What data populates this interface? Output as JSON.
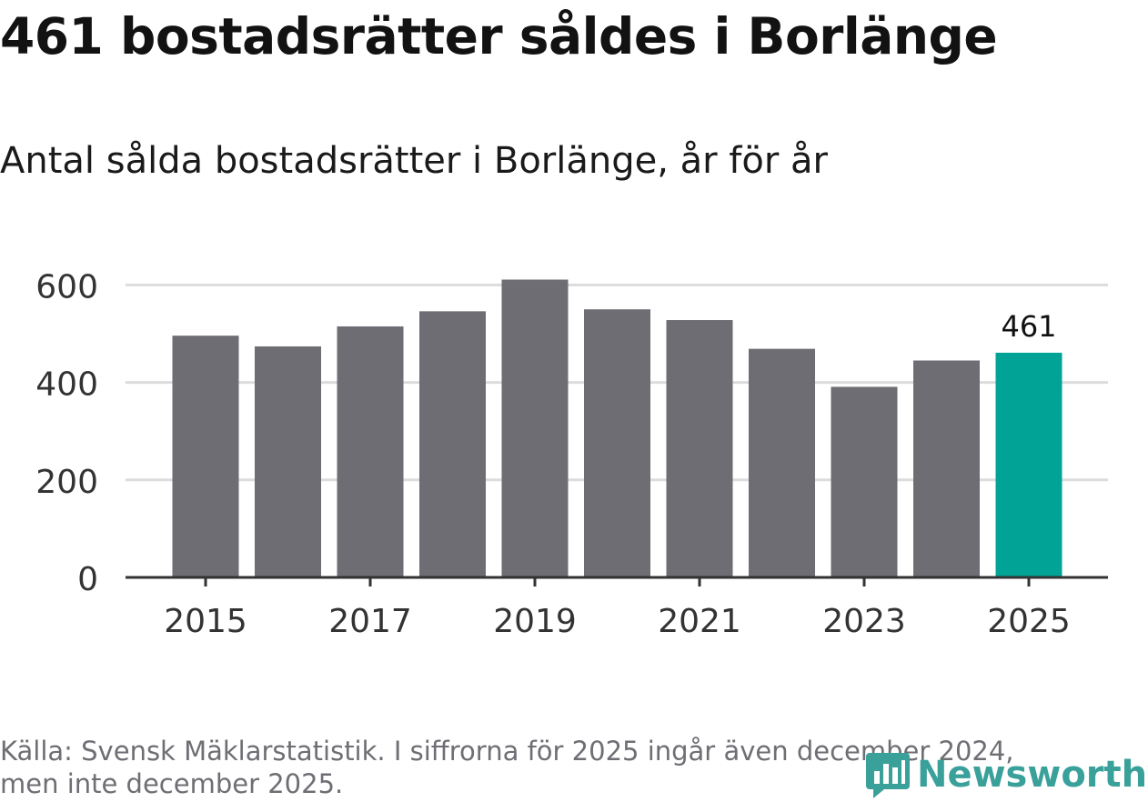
{
  "title": "461 bostadsrätter såldes i Borlänge",
  "subtitle": "Antal sålda bostadsrätter i Borlänge, år för år",
  "footer": {
    "source_line_1": "Källa: Svensk Mäklarstatistik. I siffrorna för 2025 ingår även december 2024,",
    "source_line_2": "men inte december 2025."
  },
  "logo": {
    "text": "Newsworthy",
    "icon": "newsworthy-chart-icon",
    "color": "#3aa09a"
  },
  "colors": {
    "bar": "#6e6d73",
    "highlight": "#00a396",
    "grid": "#dcdcdc",
    "axis": "#333333",
    "tick_text": "#333333"
  },
  "chart_data": {
    "type": "bar",
    "categories": [
      "2015",
      "2016",
      "2017",
      "2018",
      "2019",
      "2020",
      "2021",
      "2022",
      "2023",
      "2024",
      "2025"
    ],
    "values": [
      496,
      474,
      515,
      546,
      611,
      550,
      528,
      469,
      391,
      445,
      461
    ],
    "highlight_index": 10,
    "data_labels": [
      {
        "index": 10,
        "text": "461"
      }
    ],
    "x_tick_labels": [
      "2015",
      "2017",
      "2019",
      "2021",
      "2023",
      "2025"
    ],
    "y_tick_labels": [
      "0",
      "200",
      "400",
      "600"
    ],
    "ylim": [
      0,
      610
    ],
    "grid": true
  }
}
